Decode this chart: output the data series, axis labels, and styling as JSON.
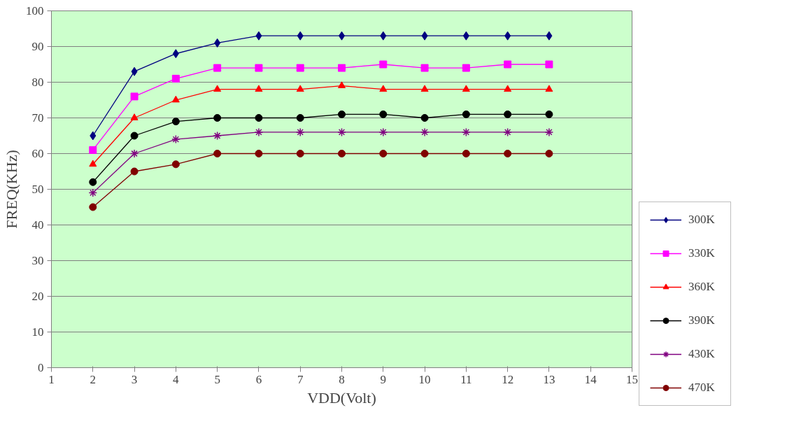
{
  "chart_data": {
    "type": "line",
    "xlabel": "VDD(Volt)",
    "ylabel": "FREQ(KHz)",
    "x": [
      2,
      3,
      4,
      5,
      6,
      7,
      8,
      9,
      10,
      11,
      12,
      13
    ],
    "xlim": [
      1,
      15
    ],
    "xticks": [
      1,
      2,
      3,
      4,
      5,
      6,
      7,
      8,
      9,
      10,
      11,
      12,
      13,
      14,
      15
    ],
    "ylim": [
      0,
      100
    ],
    "yticks": [
      0,
      10,
      20,
      30,
      40,
      50,
      60,
      70,
      80,
      90,
      100
    ],
    "grid": "y",
    "legend": "right",
    "series": [
      {
        "name": "300K",
        "color": "#000080",
        "marker": "diamond",
        "values": [
          65,
          83,
          88,
          91,
          93,
          93,
          93,
          93,
          93,
          93,
          93,
          93
        ]
      },
      {
        "name": "330K",
        "color": "#ff00ff",
        "marker": "square",
        "values": [
          61,
          76,
          81,
          84,
          84,
          84,
          84,
          85,
          84,
          84,
          85,
          85
        ]
      },
      {
        "name": "360K",
        "color": "#ff0000",
        "marker": "triangle",
        "values": [
          57,
          70,
          75,
          78,
          78,
          78,
          79,
          78,
          78,
          78,
          78,
          78
        ]
      },
      {
        "name": "390K",
        "color": "#000000",
        "marker": "circle",
        "values": [
          52,
          65,
          69,
          70,
          70,
          70,
          71,
          71,
          70,
          71,
          71,
          71
        ]
      },
      {
        "name": "430K",
        "color": "#800080",
        "marker": "cross",
        "values": [
          49,
          60,
          64,
          65,
          66,
          66,
          66,
          66,
          66,
          66,
          66,
          66
        ]
      },
      {
        "name": "470K",
        "color": "#800000",
        "marker": "circle",
        "values": [
          45,
          55,
          57,
          60,
          60,
          60,
          60,
          60,
          60,
          60,
          60,
          60
        ]
      }
    ]
  }
}
